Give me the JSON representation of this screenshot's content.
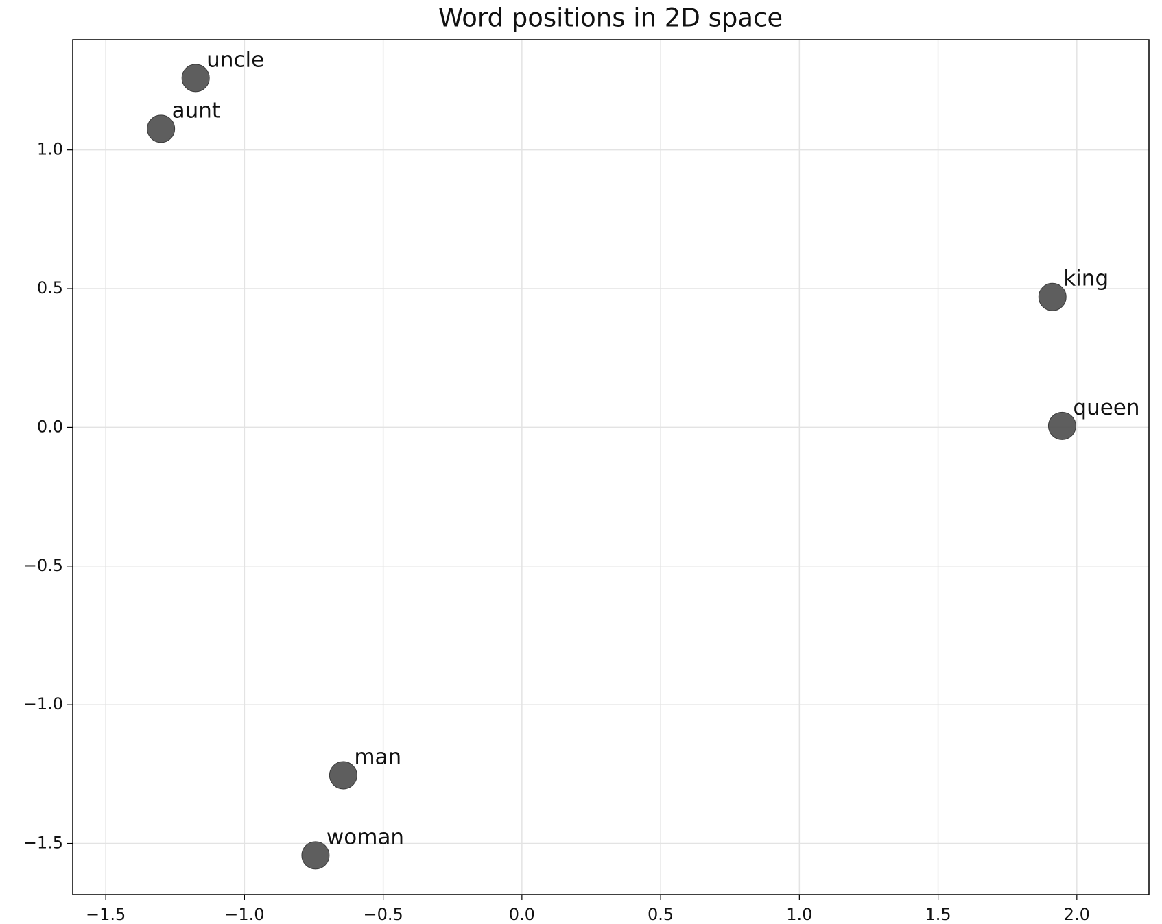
{
  "chart_data": {
    "type": "scatter",
    "title": "Word positions in 2D space",
    "labels": [
      "uncle",
      "aunt",
      "king",
      "queen",
      "man",
      "woman"
    ],
    "x": [
      -1.176,
      -1.301,
      1.912,
      1.947,
      -0.644,
      -0.744
    ],
    "y": [
      1.259,
      1.076,
      0.47,
      0.005,
      -1.254,
      -1.543
    ],
    "color": "#4d4d4d",
    "xlim": [
      -1.619,
      2.26
    ],
    "ylim": [
      -1.684,
      1.397
    ],
    "xticks": [
      {
        "value": -1.5,
        "label": "−1.5"
      },
      {
        "value": -1.0,
        "label": "−1.0"
      },
      {
        "value": -0.5,
        "label": "−0.5"
      },
      {
        "value": 0.0,
        "label": "0.0"
      },
      {
        "value": 0.5,
        "label": "0.5"
      },
      {
        "value": 1.0,
        "label": "1.0"
      },
      {
        "value": 1.5,
        "label": "1.5"
      },
      {
        "value": 2.0,
        "label": "2.0"
      }
    ],
    "yticks": [
      {
        "value": -1.5,
        "label": "−1.5"
      },
      {
        "value": -1.0,
        "label": "−1.0"
      },
      {
        "value": -0.5,
        "label": "−0.5"
      },
      {
        "value": 0.0,
        "label": "0.0"
      },
      {
        "value": 0.5,
        "label": "0.5"
      },
      {
        "value": 1.0,
        "label": "1.0"
      }
    ],
    "grid": true
  }
}
